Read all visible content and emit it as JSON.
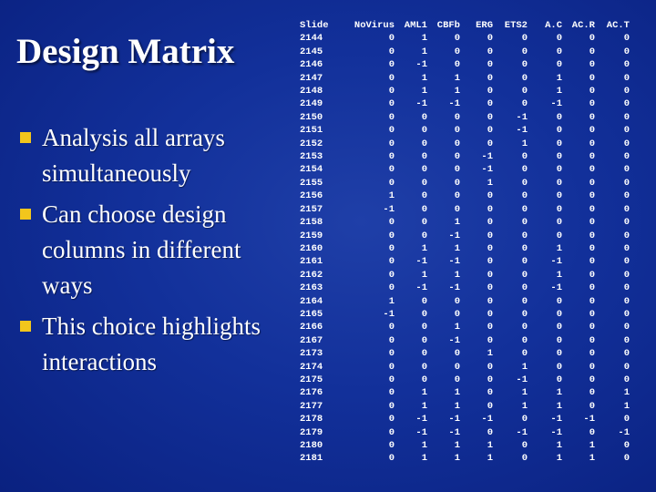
{
  "title": "Design Matrix",
  "bullets": [
    "Analysis all arrays simultaneously",
    "Can choose design columns in different ways",
    "This choice highlights interactions"
  ],
  "colors": {
    "background": "#12309a",
    "text": "#ffffff",
    "bullet": "#f2c61c"
  },
  "table": {
    "headers": [
      "Slide",
      "NoVirus",
      "AML1",
      "CBFb",
      "ERG",
      "ETS2",
      "A.C",
      "AC.R",
      "AC.T"
    ],
    "rows": [
      [
        "2144",
        "0",
        "1",
        "0",
        "0",
        "0",
        "0",
        "0",
        "0"
      ],
      [
        "2145",
        "0",
        "1",
        "0",
        "0",
        "0",
        "0",
        "0",
        "0"
      ],
      [
        "2146",
        "0",
        "-1",
        "0",
        "0",
        "0",
        "0",
        "0",
        "0"
      ],
      [
        "2147",
        "0",
        "1",
        "1",
        "0",
        "0",
        "1",
        "0",
        "0"
      ],
      [
        "2148",
        "0",
        "1",
        "1",
        "0",
        "0",
        "1",
        "0",
        "0"
      ],
      [
        "2149",
        "0",
        "-1",
        "-1",
        "0",
        "0",
        "-1",
        "0",
        "0"
      ],
      [
        "2150",
        "0",
        "0",
        "0",
        "0",
        "-1",
        "0",
        "0",
        "0"
      ],
      [
        "2151",
        "0",
        "0",
        "0",
        "0",
        "-1",
        "0",
        "0",
        "0"
      ],
      [
        "2152",
        "0",
        "0",
        "0",
        "0",
        "1",
        "0",
        "0",
        "0"
      ],
      [
        "2153",
        "0",
        "0",
        "0",
        "-1",
        "0",
        "0",
        "0",
        "0"
      ],
      [
        "2154",
        "0",
        "0",
        "0",
        "-1",
        "0",
        "0",
        "0",
        "0"
      ],
      [
        "2155",
        "0",
        "0",
        "0",
        "1",
        "0",
        "0",
        "0",
        "0"
      ],
      [
        "2156",
        "1",
        "0",
        "0",
        "0",
        "0",
        "0",
        "0",
        "0"
      ],
      [
        "2157",
        "-1",
        "0",
        "0",
        "0",
        "0",
        "0",
        "0",
        "0"
      ],
      [
        "2158",
        "0",
        "0",
        "1",
        "0",
        "0",
        "0",
        "0",
        "0"
      ],
      [
        "2159",
        "0",
        "0",
        "-1",
        "0",
        "0",
        "0",
        "0",
        "0"
      ],
      [
        "2160",
        "0",
        "1",
        "1",
        "0",
        "0",
        "1",
        "0",
        "0"
      ],
      [
        "2161",
        "0",
        "-1",
        "-1",
        "0",
        "0",
        "-1",
        "0",
        "0"
      ],
      [
        "2162",
        "0",
        "1",
        "1",
        "0",
        "0",
        "1",
        "0",
        "0"
      ],
      [
        "2163",
        "0",
        "-1",
        "-1",
        "0",
        "0",
        "-1",
        "0",
        "0"
      ],
      [
        "2164",
        "1",
        "0",
        "0",
        "0",
        "0",
        "0",
        "0",
        "0"
      ],
      [
        "2165",
        "-1",
        "0",
        "0",
        "0",
        "0",
        "0",
        "0",
        "0"
      ],
      [
        "2166",
        "0",
        "0",
        "1",
        "0",
        "0",
        "0",
        "0",
        "0"
      ],
      [
        "2167",
        "0",
        "0",
        "-1",
        "0",
        "0",
        "0",
        "0",
        "0"
      ],
      [
        "2173",
        "0",
        "0",
        "0",
        "1",
        "0",
        "0",
        "0",
        "0"
      ],
      [
        "2174",
        "0",
        "0",
        "0",
        "0",
        "1",
        "0",
        "0",
        "0"
      ],
      [
        "2175",
        "0",
        "0",
        "0",
        "0",
        "-1",
        "0",
        "0",
        "0"
      ],
      [
        "2176",
        "0",
        "1",
        "1",
        "0",
        "1",
        "1",
        "0",
        "1"
      ],
      [
        "2177",
        "0",
        "1",
        "1",
        "0",
        "1",
        "1",
        "0",
        "1"
      ],
      [
        "2178",
        "0",
        "-1",
        "-1",
        "-1",
        "0",
        "-1",
        "-1",
        "0"
      ],
      [
        "2179",
        "0",
        "-1",
        "-1",
        "0",
        "-1",
        "-1",
        "0",
        "-1"
      ],
      [
        "2180",
        "0",
        "1",
        "1",
        "1",
        "0",
        "1",
        "1",
        "0"
      ],
      [
        "2181",
        "0",
        "1",
        "1",
        "1",
        "0",
        "1",
        "1",
        "0"
      ]
    ]
  }
}
